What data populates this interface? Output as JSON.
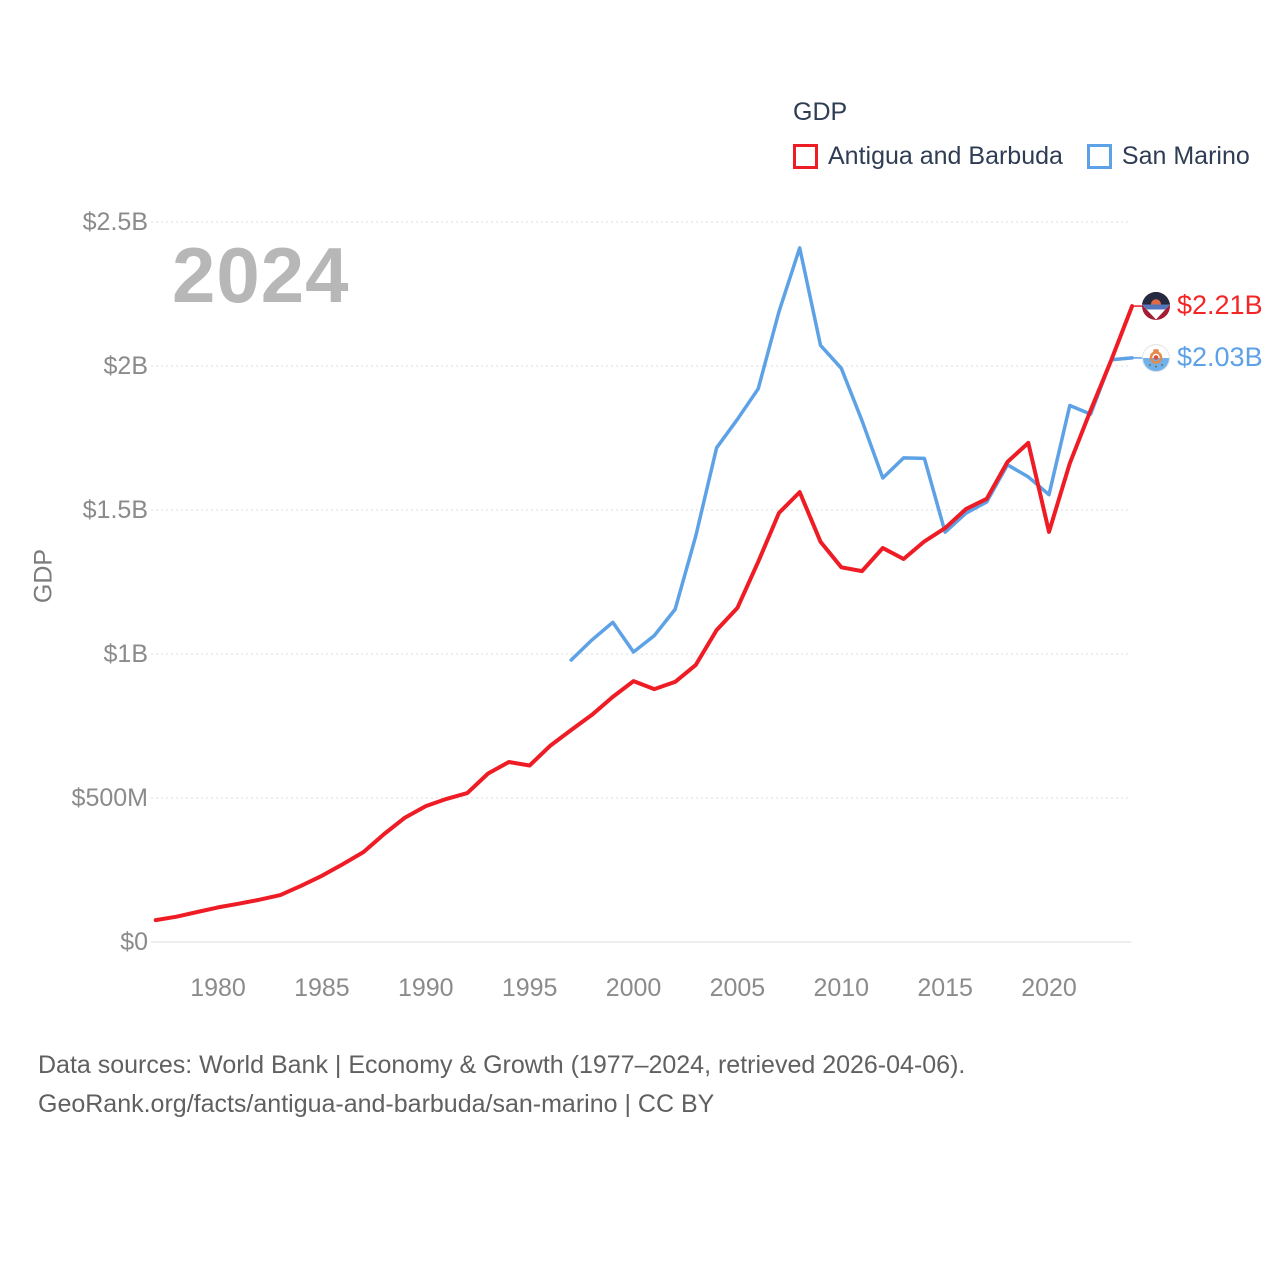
{
  "legend": {
    "title": "GDP",
    "items": [
      {
        "label": "Antigua and Barbuda",
        "color": "#ee1c25"
      },
      {
        "label": "San Marino",
        "color": "#5da1e6"
      }
    ]
  },
  "watermark": "2024",
  "y_axis_title": "GDP",
  "end_labels": [
    {
      "text": "$2.21B",
      "color": "#f32525"
    },
    {
      "text": "$2.03B",
      "color": "#5da1e6"
    }
  ],
  "footer": {
    "line1": "Data sources: World Bank | Economy & Growth (1977–2024, retrieved 2026-04-06).",
    "line2": "GeoRank.org/facts/antigua-and-barbuda/san-marino | CC BY"
  },
  "chart_data": {
    "type": "line",
    "title": "GDP",
    "ylabel": "GDP",
    "unit": "million USD",
    "xlim": [
      1977,
      2024
    ],
    "ylim": [
      0,
      2500
    ],
    "grid": "horizontal",
    "legend_position": "top-right",
    "x_ticks": [
      1980,
      1985,
      1990,
      1995,
      2000,
      2005,
      2010,
      2015,
      2020
    ],
    "y_ticks": [
      {
        "label": "$2.5B",
        "value": 2500
      },
      {
        "label": "$2B",
        "value": 2000
      },
      {
        "label": "$1.5B",
        "value": 1500
      },
      {
        "label": "$1B",
        "value": 1000
      },
      {
        "label": "$500M",
        "value": 500
      },
      {
        "label": "$0",
        "value": 0
      }
    ],
    "series": [
      {
        "name": "Antigua and Barbuda",
        "color": "#ee1c25",
        "x_start": 1977,
        "values": [
          76,
          88,
          104,
          120,
          133,
          147,
          163,
          195,
          230,
          270,
          312,
          375,
          432,
          472,
          497,
          517,
          585,
          625,
          613,
          682,
          736,
          789,
          851,
          906,
          878,
          903,
          962,
          1083,
          1160,
          1320,
          1490,
          1562,
          1390,
          1301,
          1288,
          1368,
          1330,
          1391,
          1437,
          1503,
          1539,
          1667,
          1733,
          1424,
          1662,
          1846,
          2021,
          2208
        ],
        "end_value_label": "$2.21B"
      },
      {
        "name": "San Marino",
        "color": "#5da1e6",
        "x_start": 1997,
        "values": [
          979,
          1049,
          1110,
          1007,
          1064,
          1155,
          1410,
          1716,
          1815,
          1921,
          2189,
          2410,
          2072,
          1992,
          1810,
          1611,
          1681,
          1679,
          1423,
          1489,
          1528,
          1657,
          1615,
          1553,
          1863,
          1833,
          2022,
          2028
        ],
        "end_value_label": "$2.03B"
      }
    ]
  }
}
